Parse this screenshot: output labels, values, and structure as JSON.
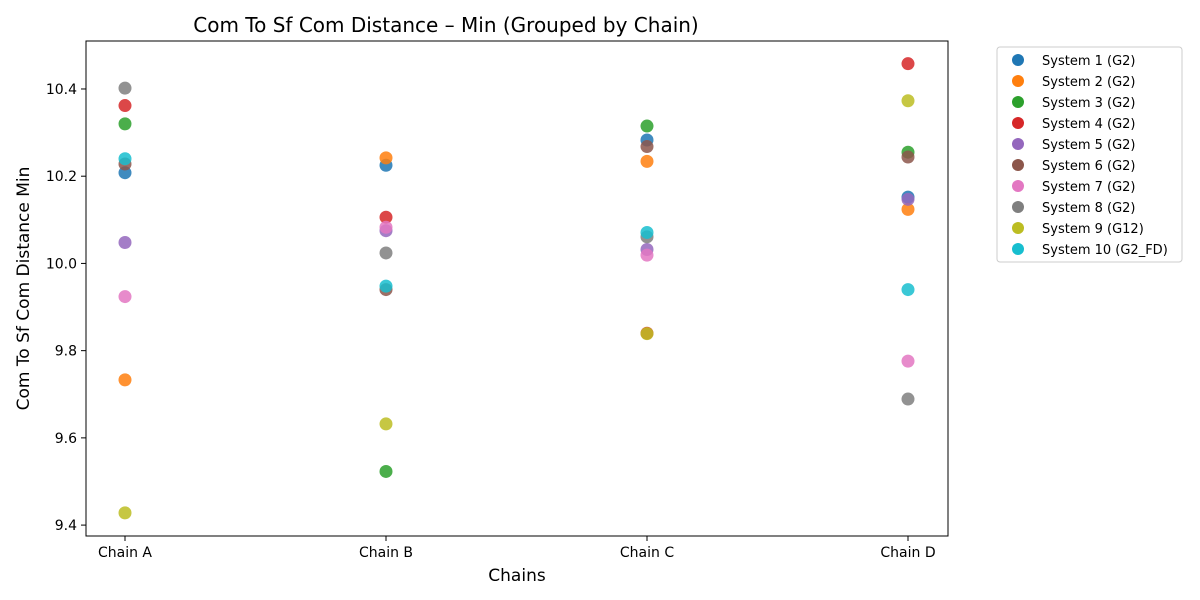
{
  "chart_data": {
    "type": "scatter",
    "title": "Com To Sf Com Distance – Min (Grouped by Chain)",
    "xlabel": "Chains",
    "ylabel": "Com To Sf Com Distance Min",
    "categories": [
      "Chain A",
      "Chain B",
      "Chain C",
      "Chain D"
    ],
    "ylim": [
      9.375,
      10.51
    ],
    "yticks": [
      9.4,
      9.6,
      9.8,
      10.0,
      10.2,
      10.4
    ],
    "ytick_labels": [
      "9.4",
      "9.6",
      "9.8",
      "10.0",
      "10.2",
      "10.4"
    ],
    "grid": false,
    "legend_position": "outside-right-top",
    "series": [
      {
        "name": "System 1 (G2)",
        "color": "#1f77b4",
        "values": [
          10.208,
          10.225,
          10.283,
          10.152
        ]
      },
      {
        "name": "System 2 (G2)",
        "color": "#ff7f0e",
        "values": [
          9.733,
          10.242,
          10.234,
          10.124
        ]
      },
      {
        "name": "System 3 (G2)",
        "color": "#2ca02c",
        "values": [
          10.32,
          9.523,
          10.315,
          10.255
        ]
      },
      {
        "name": "System 4 (G2)",
        "color": "#d62728",
        "values": [
          10.362,
          10.106,
          9.84,
          10.458
        ]
      },
      {
        "name": "System 5 (G2)",
        "color": "#9467bd",
        "values": [
          10.048,
          10.075,
          10.032,
          10.147
        ]
      },
      {
        "name": "System 6 (G2)",
        "color": "#8c564b",
        "values": [
          10.228,
          9.94,
          10.268,
          10.244
        ]
      },
      {
        "name": "System 7 (G2)",
        "color": "#e377c2",
        "values": [
          9.924,
          10.083,
          10.019,
          9.776
        ]
      },
      {
        "name": "System 8 (G2)",
        "color": "#7f7f7f",
        "values": [
          10.402,
          10.024,
          10.061,
          9.689
        ]
      },
      {
        "name": "System 9 (G12)",
        "color": "#bcbd22",
        "values": [
          9.428,
          9.632,
          9.839,
          10.373
        ]
      },
      {
        "name": "System 10 (G2_FD)",
        "color": "#17becf",
        "values": [
          10.24,
          9.948,
          10.071,
          9.94
        ]
      }
    ]
  }
}
